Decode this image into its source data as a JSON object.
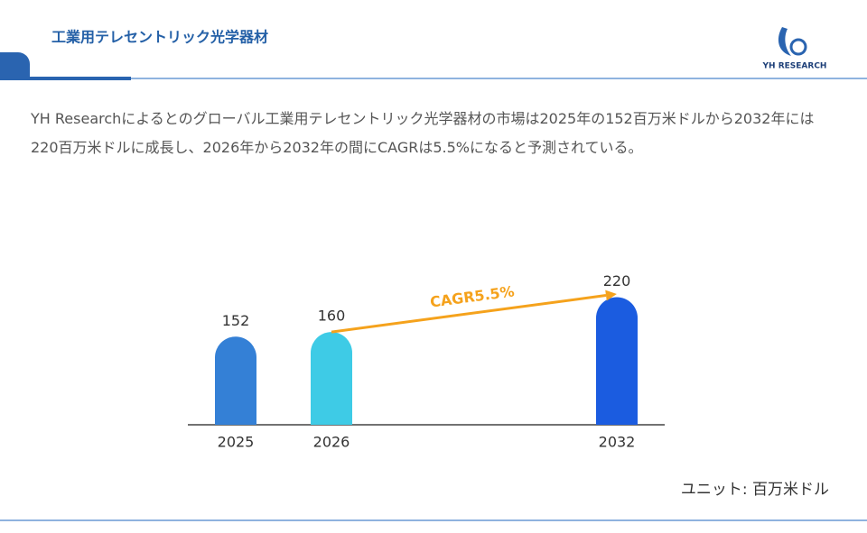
{
  "header": {
    "title": "工業用テレセントリック光学器材",
    "logo": "YH RESEARCH"
  },
  "summary": "YH Researchによるとのグローバル工業用テレセントリック光学器材の市場は2025年の152百万米ドルから2032年には220百万米ドルに成長し、2026年から2032年の間にCAGRは5.5%になると予測されている。",
  "chart_data": {
    "type": "bar",
    "categories": [
      "2025",
      "2026",
      "2032"
    ],
    "values": [
      152,
      160,
      220
    ],
    "colors": [
      "#3480d6",
      "#3ecbe6",
      "#1b5ce0"
    ],
    "annotation": "CAGR5.5%",
    "annotation_color": "#f5a21c",
    "unit": "ユニット: 百万米ドル"
  }
}
